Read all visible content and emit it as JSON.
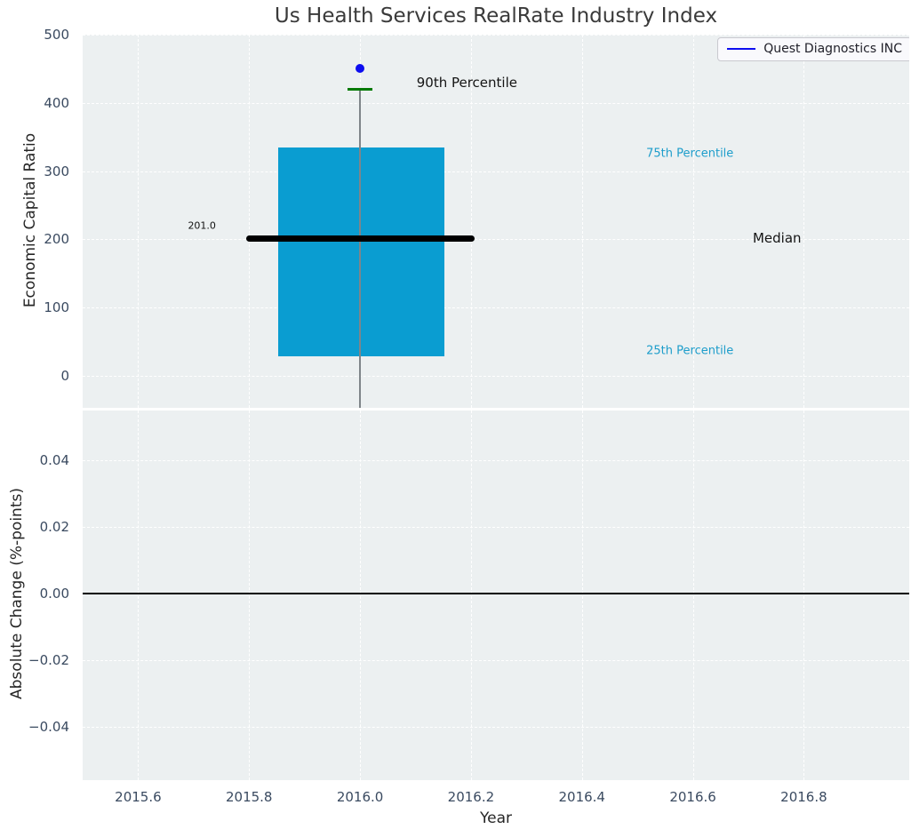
{
  "title": "Us Health Services RealRate Industry Index",
  "legend": {
    "label": "Quest Diagnostics INC",
    "loc": "upper right"
  },
  "axis_labels": {
    "top_y": "Economic Capital Ratio",
    "bottom_y": "Absolute Change (%-points)",
    "x": "Year"
  },
  "colors": {
    "figure_bg": "#ffffff",
    "axes_bg": "#ecf0f1",
    "grid": "#ffffff",
    "box_fill": "#0a9dd1",
    "median_line": "#000000",
    "whisker": "#7f8589",
    "cap_90th": "#057a05",
    "point": "#0d0df0",
    "legend_line": "#0d0df0",
    "tick_label": "#3a4a60",
    "axis_label": "#262626",
    "title": "#3a3a3a",
    "cyan_label": "#1d9dcb",
    "zero_line": "#000000"
  },
  "chart_data": [
    {
      "type": "boxplot",
      "title": "Us Health Services RealRate Industry Index",
      "xlabel": "",
      "ylabel": "Economic Capital Ratio",
      "xlim": [
        2015.5,
        2016.99
      ],
      "ylim": [
        -47,
        500
      ],
      "x_ticks": [
        2015.6,
        2015.8,
        2016.0,
        2016.2,
        2016.4,
        2016.6,
        2016.8
      ],
      "y_ticks": [
        0,
        100,
        200,
        300,
        400,
        500
      ],
      "grid": true,
      "legend_entries": [
        "Quest Diagnostics INC"
      ],
      "legend_position": "upper right",
      "box": {
        "x_center": 2016.0,
        "x_left": 2015.852,
        "x_right": 2016.152,
        "q1_25th_percentile": 28,
        "median": 201.0,
        "q3_75th_percentile": 334,
        "p90_90th_percentile": 420,
        "median_x_left": 2015.794,
        "median_x_right": 2016.206,
        "cap_half_width": 0.0225,
        "whisker_low_clipped_below_axis": true
      },
      "points": [
        {
          "name": "Quest Diagnostics INC",
          "x": 2016.0,
          "y": 450
        }
      ],
      "annotations": [
        {
          "id": "median-value-label",
          "text": "201.0",
          "x": 2015.715,
          "y": 220,
          "size": 11,
          "color": "#111111",
          "align": "center"
        },
        {
          "id": "p90-label",
          "text": "90th Percentile",
          "x": 2016.102,
          "y": 430,
          "size": 15,
          "color": "#141414",
          "align": "left"
        },
        {
          "id": "p75-label",
          "text": "75th Percentile",
          "x": 2016.516,
          "y": 325,
          "size": 13,
          "color": "#1d9dcb",
          "align": "left"
        },
        {
          "id": "median-label",
          "text": "Median",
          "x": 2016.708,
          "y": 202,
          "size": 15,
          "color": "#141414",
          "align": "left"
        },
        {
          "id": "p25-label",
          "text": "25th Percentile",
          "x": 2016.516,
          "y": 36,
          "size": 13,
          "color": "#1d9dcb",
          "align": "left"
        }
      ]
    },
    {
      "type": "line",
      "xlabel": "Year",
      "ylabel": "Absolute Change (%-points)",
      "xlim": [
        2015.5,
        2016.99
      ],
      "ylim": [
        -0.056,
        0.0548
      ],
      "x_ticks": [
        2015.6,
        2015.8,
        2016.0,
        2016.2,
        2016.4,
        2016.6,
        2016.8
      ],
      "x_tick_labels": [
        "2015.6",
        "2015.8",
        "2016.0",
        "2016.2",
        "2016.4",
        "2016.6",
        "2016.8"
      ],
      "y_ticks": [
        0.04,
        0.02,
        0.0,
        -0.02,
        -0.04
      ],
      "y_tick_labels": [
        "0.04",
        "0.02",
        "0.00",
        "−0.02",
        "−0.04"
      ],
      "grid": true,
      "series": [
        {
          "name": "Quest Diagnostics INC",
          "style": "horizontal-line",
          "y": 0.0,
          "color": "#000000"
        }
      ]
    }
  ]
}
